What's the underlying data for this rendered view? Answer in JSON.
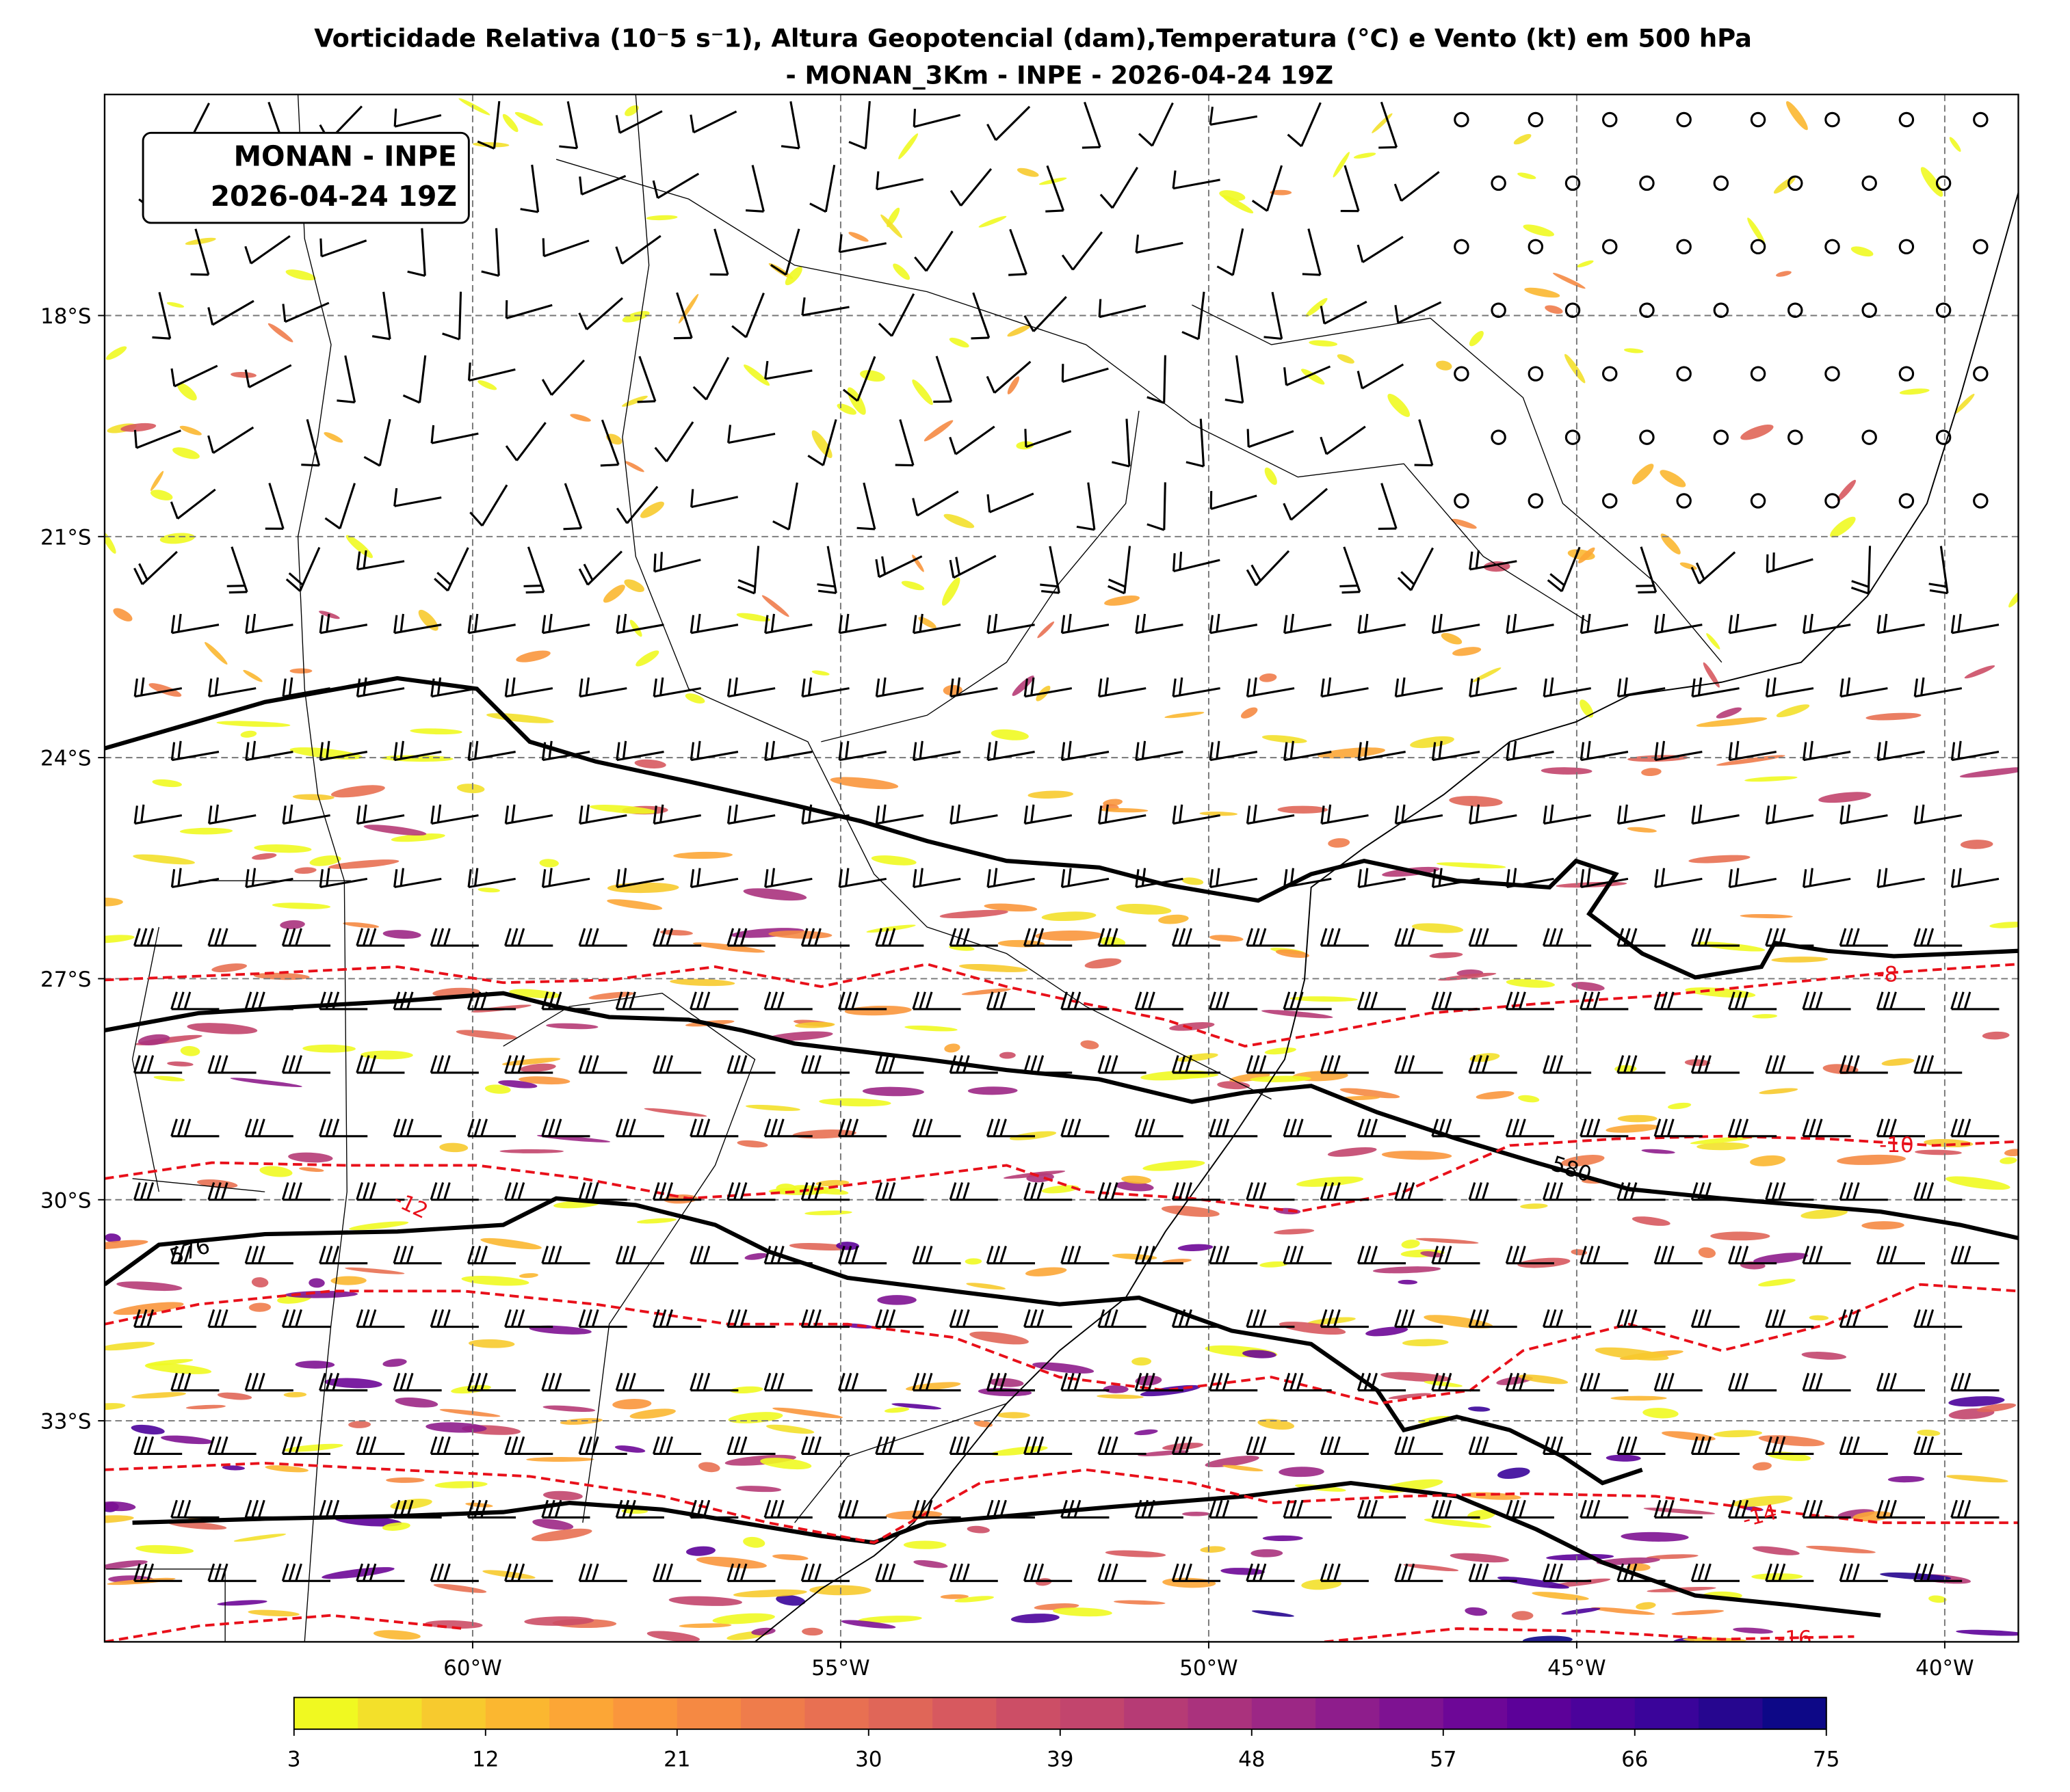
{
  "chart_data": {
    "type": "map",
    "title": "Vorticidade Relativa (10⁻5 s⁻1), Altura Geopotencial (dam),Temperatura (°C) e Vento (kt) em 500 hPa",
    "subtitle": "- MONAN_3Km - INPE - 2026-04-24 19Z",
    "box_lines": [
      "MONAN - INPE",
      "2026-04-24 19Z"
    ],
    "xlim": [
      -65,
      -39
    ],
    "ylim": [
      -36,
      -15
    ],
    "xticks": [
      {
        "value": -60,
        "label": "60°W"
      },
      {
        "value": -55,
        "label": "55°W"
      },
      {
        "value": -50,
        "label": "50°W"
      },
      {
        "value": -45,
        "label": "45°W"
      },
      {
        "value": -40,
        "label": "40°W"
      }
    ],
    "yticks": [
      {
        "value": -18,
        "label": "18°S"
      },
      {
        "value": -21,
        "label": "21°S"
      },
      {
        "value": -24,
        "label": "24°S"
      },
      {
        "value": -27,
        "label": "27°S"
      },
      {
        "value": -30,
        "label": "30°S"
      },
      {
        "value": -33,
        "label": "33°S"
      }
    ],
    "grid": true,
    "height_labels": [
      "576",
      "580"
    ],
    "temperature_labels": [
      "-8",
      "-10",
      "-12",
      "-14",
      "-16"
    ],
    "colorbar": {
      "lim": [
        3,
        75
      ],
      "ticks": [
        3,
        12,
        21,
        30,
        39,
        48,
        57,
        66,
        75
      ],
      "colors": [
        "#f0f921",
        "#f3e02a",
        "#f7ca2e",
        "#fbb730",
        "#fca636",
        "#fa963c",
        "#f58943",
        "#ef7c4b",
        "#e87052",
        "#e06658",
        "#d7595f",
        "#cc4e66",
        "#c2456d",
        "#b63b75",
        "#aa327d",
        "#9c2785",
        "#8e1d8c",
        "#7e1292",
        "#6d0797",
        "#5c0199",
        "#4b029b",
        "#3a049a",
        "#26068f",
        "#0d0887"
      ]
    }
  }
}
